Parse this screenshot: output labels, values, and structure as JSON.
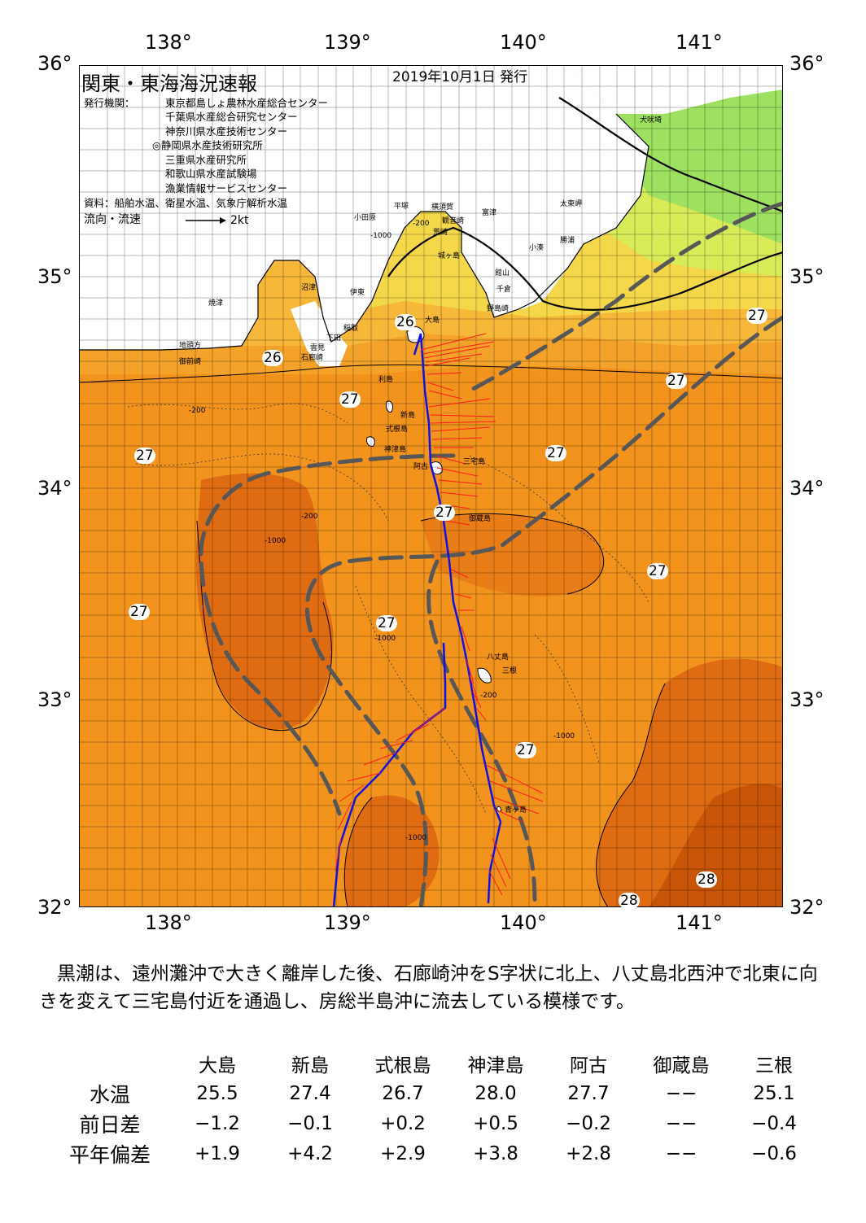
{
  "header": {
    "title": "関東・東海海況速報",
    "date": "2019年10月1日 発行",
    "issuer_label": "発行機関：",
    "issuers": [
      "東京都島しょ農林水産総合センター",
      "千葉県水産総合研究センター",
      "神奈川県水産技術センター",
      "◎静岡県水産技術研究所",
      "三重県水産研究所",
      "和歌山県水産試験場",
      "漁業情報サービスセンター"
    ],
    "source": "資料：船舶水温、衛星水温、気象庁解析水温",
    "flow_label": "流向・流速",
    "flow_scale": "2kt"
  },
  "axes": {
    "lon_ticks": [
      "138°",
      "139°",
      "140°",
      "141°"
    ],
    "lat_ticks": [
      "36°",
      "35°",
      "34°",
      "33°",
      "32°"
    ]
  },
  "place_names": [
    "犬吠埼",
    "太東岬",
    "勝浦",
    "小湊",
    "富津",
    "館山",
    "千倉",
    "野島崎",
    "横須賀",
    "観音崎",
    "荒崎",
    "平塚",
    "小田原",
    "城ヶ島",
    "伊東",
    "沼津",
    "焼津",
    "稲取",
    "下田",
    "雲見",
    "石廊崎",
    "地頭方",
    "御前崎",
    "大島",
    "利島",
    "新島",
    "式根島",
    "神津島",
    "阿古",
    "三宅島",
    "御蔵島",
    "八丈島",
    "三根",
    "青ヶ島"
  ],
  "isotherm_labels": [
    "26",
    "26",
    "27",
    "27",
    "27",
    "27",
    "27",
    "27",
    "27",
    "27",
    "27",
    "27",
    "28",
    "28"
  ],
  "depth_labels": [
    "-200",
    "-1000",
    "-200",
    "-1000",
    "-200",
    "-1000",
    "-1000",
    "-1000",
    "-200"
  ],
  "summary": "黒潮は、遠州灘沖で大きく離岸した後、石廊崎沖をS字状に北上、八丈島北西沖で北東に向きを変えて三宅島付近を通過し、房総半島沖に流去している模様です。",
  "table": {
    "columns": [
      "大島",
      "新島",
      "式根島",
      "神津島",
      "阿古",
      "御蔵島",
      "三根"
    ],
    "rows": [
      {
        "label": "水温",
        "values": [
          "25.5",
          "27.4",
          "26.7",
          "28.0",
          "27.7",
          "−−",
          "25.1"
        ]
      },
      {
        "label": "前日差",
        "values": [
          "−1.2",
          "−0.1",
          "+0.2",
          "+0.5",
          "−0.2",
          "−−",
          "−0.4"
        ]
      },
      {
        "label": "平年偏差",
        "values": [
          "+1.9",
          "+4.2",
          "+2.9",
          "+3.8",
          "+2.8",
          "−−",
          "−0.6"
        ]
      }
    ]
  },
  "colors": {
    "sea_warm": "#f2931e",
    "sea_hot": "#df6b12",
    "sea_hottest": "#c85408",
    "sea_cool_yellow": "#f7e04e",
    "sea_cool_green": "#9ee060",
    "land": "#ffffff",
    "kuroshio_axis": "#575757",
    "ship_track": "#1010e0",
    "current_vectors": "#ff1a1a"
  }
}
